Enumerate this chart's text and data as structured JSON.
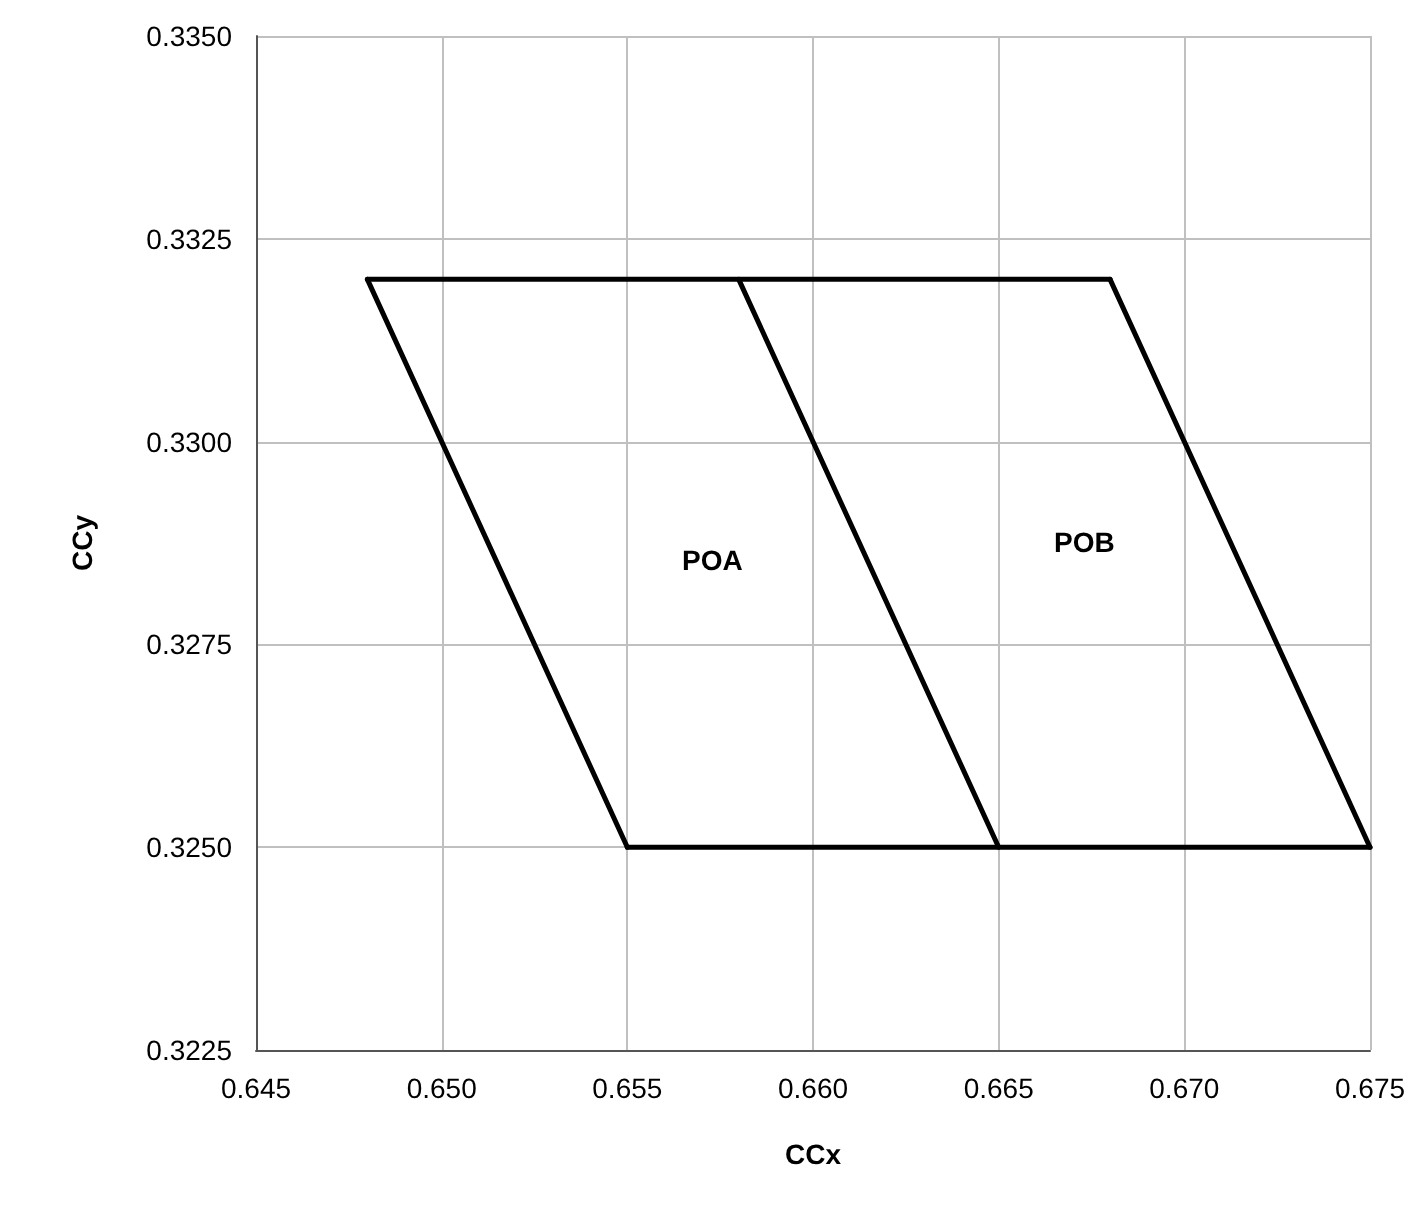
{
  "chart_data": {
    "type": "line",
    "xlabel": "CCx",
    "ylabel": "CCy",
    "series": [
      {
        "color": "#000000",
        "x": [
          0.648,
          0.658,
          0.668
        ],
        "values": [
          0.332,
          0.332,
          0.332
        ]
      },
      {
        "color": "#000000",
        "x": [
          0.655,
          0.665,
          0.675
        ],
        "values": [
          0.325,
          0.325,
          0.325
        ]
      },
      {
        "color": "#000000",
        "x": [
          0.648,
          0.655
        ],
        "values": [
          0.332,
          0.325
        ]
      },
      {
        "color": "#000000",
        "x": [
          0.658,
          0.665
        ],
        "values": [
          0.332,
          0.325
        ]
      },
      {
        "color": "#000000",
        "x": [
          0.668,
          0.675
        ],
        "values": [
          0.332,
          0.325
        ]
      }
    ],
    "annotations": [
      "POA",
      "POB"
    ],
    "xlim": [
      0.645,
      0.675
    ],
    "xticks": [
      0.645,
      {
        "value": 0.65,
        "label": "0.650"
      },
      0.655,
      {
        "value": 0.66,
        "label": "0.660"
      },
      0.665,
      {
        "value": 0.67,
        "label": "0.670"
      },
      0.675
    ],
    "ylim": [
      0.3225,
      0.335
    ],
    "yticks": [
      0.3225,
      {
        "value": 0.325,
        "label": "0.3250"
      },
      0.3275,
      {
        "value": 0.33,
        "label": "0.3300"
      },
      0.3325,
      {
        "value": 0.335,
        "label": "0.3350"
      }
    ],
    "grid": true,
    "marker": "none",
    "line_style": "solid"
  }
}
